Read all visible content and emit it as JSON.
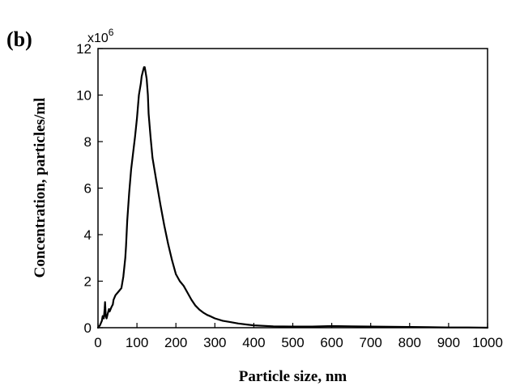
{
  "panel_label": "(b)",
  "chart_data": {
    "type": "line",
    "xlabel": "Particle size, nm",
    "ylabel": "Concentration, particles/ml",
    "y_multiplier_base": "x10",
    "y_multiplier_exp": "6",
    "xlim": [
      0,
      1000
    ],
    "ylim": [
      0,
      12
    ],
    "x_ticks": [
      0,
      100,
      200,
      300,
      400,
      500,
      600,
      700,
      800,
      900,
      1000
    ],
    "y_ticks": [
      0,
      2,
      4,
      6,
      8,
      10,
      12
    ],
    "grid": false,
    "line_color": "#000000",
    "series": [
      {
        "x": [
          0,
          5,
          10,
          12,
          15,
          17,
          18,
          20,
          22,
          25,
          28,
          30,
          35,
          38,
          40,
          45,
          50,
          55,
          60,
          65,
          70,
          72,
          75,
          80,
          85,
          90,
          95,
          100,
          105,
          110,
          112,
          115,
          118,
          120,
          122,
          125,
          128,
          130,
          135,
          140,
          150,
          160,
          170,
          180,
          190,
          200,
          210,
          220,
          230,
          240,
          250,
          260,
          270,
          280,
          290,
          300,
          320,
          340,
          360,
          380,
          400,
          450,
          500,
          550,
          600,
          650,
          700,
          750,
          800,
          850,
          900,
          950,
          1000
        ],
        "y": [
          0.0,
          0.1,
          0.3,
          0.5,
          0.4,
          0.8,
          1.1,
          0.5,
          0.4,
          0.6,
          0.8,
          0.7,
          0.9,
          1.0,
          1.2,
          1.4,
          1.5,
          1.6,
          1.7,
          2.2,
          3.0,
          3.5,
          4.6,
          5.8,
          6.8,
          7.5,
          8.2,
          9.0,
          10.0,
          10.5,
          10.8,
          11.0,
          11.2,
          11.2,
          11.0,
          10.7,
          10.0,
          9.2,
          8.2,
          7.3,
          6.3,
          5.3,
          4.4,
          3.6,
          2.9,
          2.3,
          2.0,
          1.8,
          1.5,
          1.2,
          0.95,
          0.78,
          0.65,
          0.55,
          0.48,
          0.4,
          0.3,
          0.24,
          0.18,
          0.14,
          0.1,
          0.06,
          0.05,
          0.05,
          0.07,
          0.06,
          0.05,
          0.04,
          0.03,
          0.02,
          0.01,
          0.01,
          0.0
        ]
      }
    ]
  }
}
